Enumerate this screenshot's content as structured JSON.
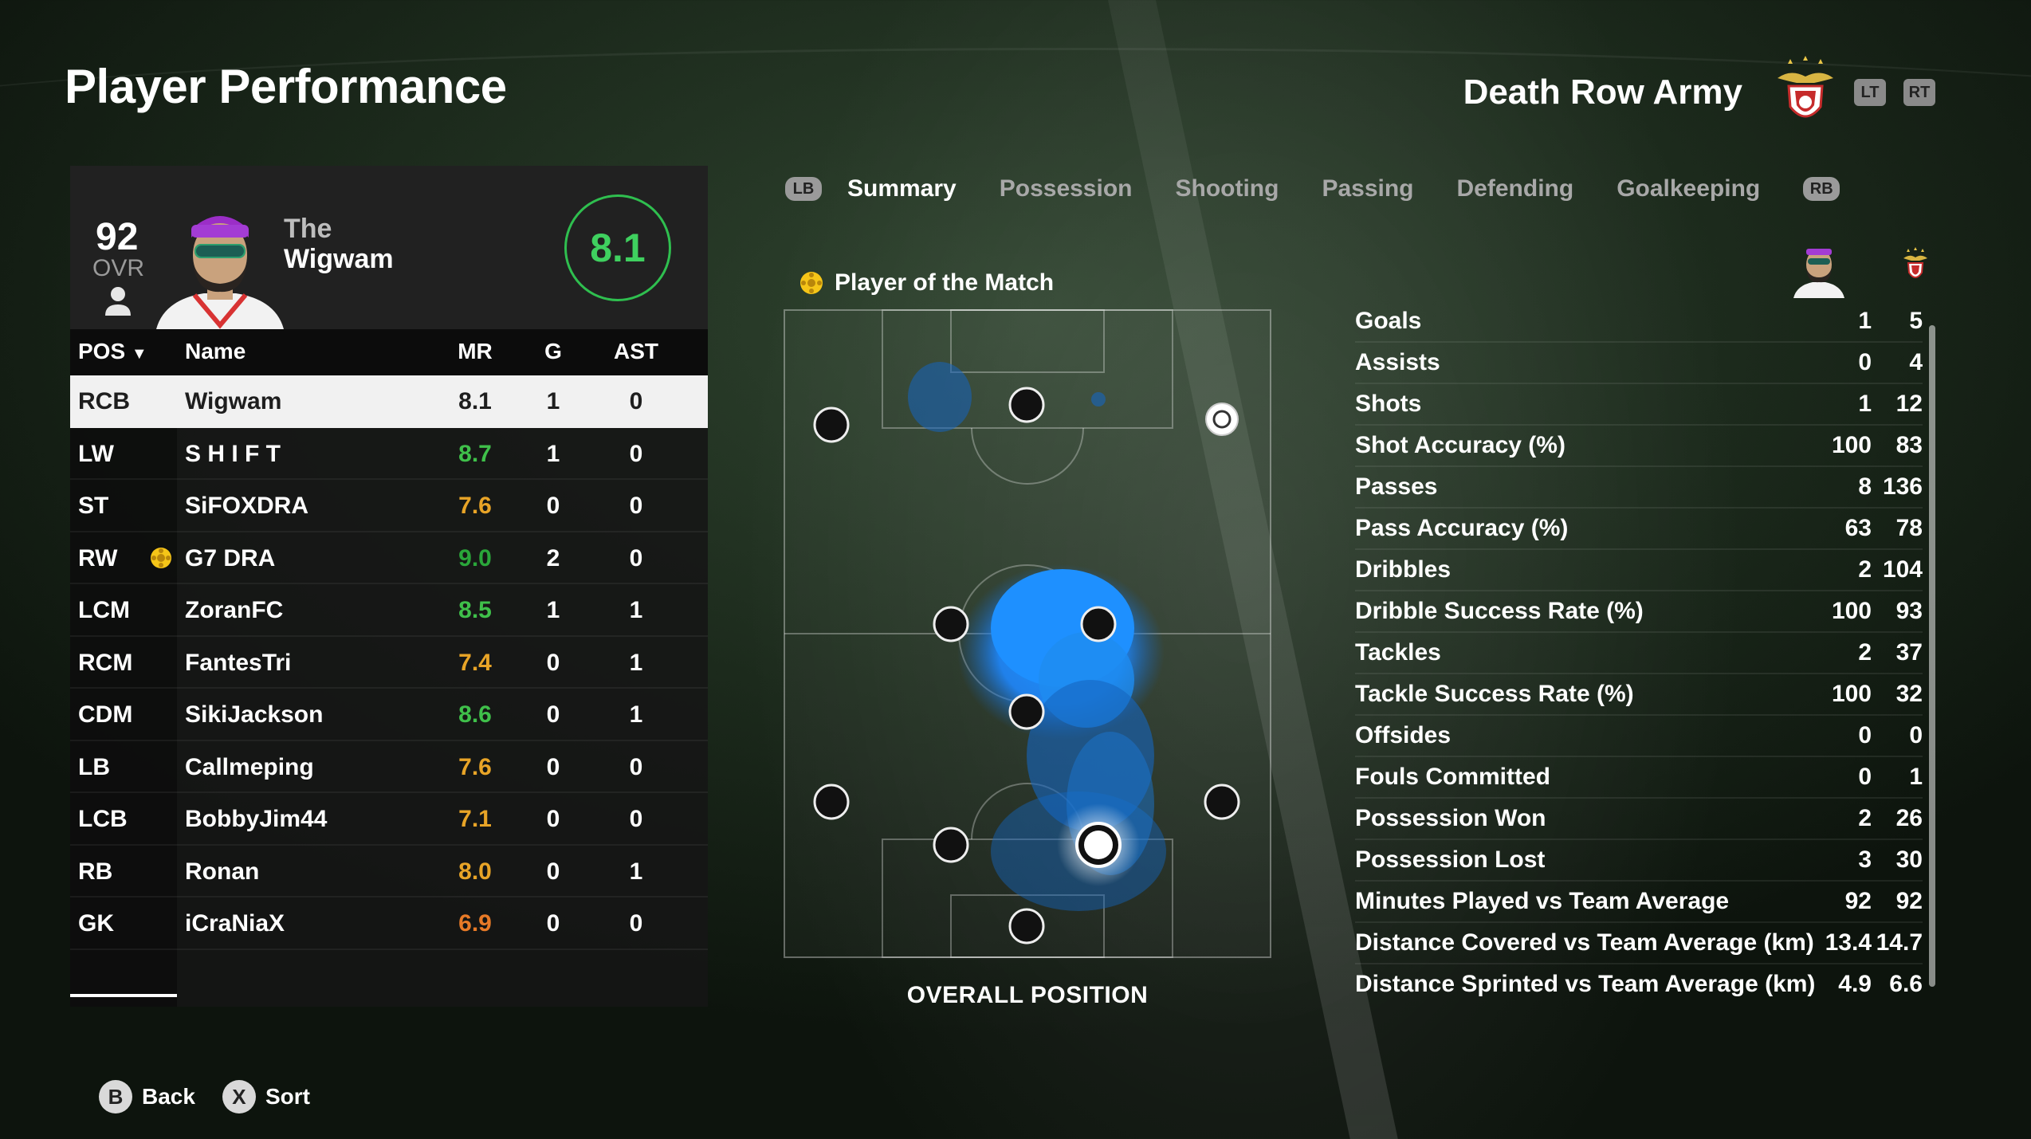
{
  "header": {
    "title": "Player Performance",
    "team_name": "Death Row Army",
    "lt_label": "LT",
    "rt_label": "RT"
  },
  "player": {
    "ovr": "92",
    "ovr_label": "OVR",
    "first_name": "The",
    "last_name": "Wigwam",
    "rating": "8.1"
  },
  "table": {
    "columns": {
      "pos": "POS",
      "name": "Name",
      "mr": "MR",
      "g": "G",
      "ast": "AST"
    },
    "rows": [
      {
        "pos": "RCB",
        "name": "Wigwam",
        "mr": "8.1",
        "g": "1",
        "ast": "0",
        "mr_color": "#1e1e1e"
      },
      {
        "pos": "LW",
        "name": "S H I F T",
        "mr": "8.7",
        "g": "1",
        "ast": "0",
        "mr_color": "#3fc04a"
      },
      {
        "pos": "ST",
        "name": "SiFOXDRA",
        "mr": "7.6",
        "g": "0",
        "ast": "0",
        "mr_color": "#e8a427"
      },
      {
        "pos": "RW",
        "name": "G7 DRA",
        "mr": "9.0",
        "g": "2",
        "ast": "0",
        "mr_color": "#2aa63a"
      },
      {
        "pos": "LCM",
        "name": "ZoranFC",
        "mr": "8.5",
        "g": "1",
        "ast": "1",
        "mr_color": "#3fc04a"
      },
      {
        "pos": "RCM",
        "name": "FantesTri",
        "mr": "7.4",
        "g": "0",
        "ast": "1",
        "mr_color": "#e8a427"
      },
      {
        "pos": "CDM",
        "name": "SikiJackson",
        "mr": "8.6",
        "g": "0",
        "ast": "1",
        "mr_color": "#3fc04a"
      },
      {
        "pos": "LB",
        "name": "Callmeping",
        "mr": "7.6",
        "g": "0",
        "ast": "0",
        "mr_color": "#e8a427"
      },
      {
        "pos": "LCB",
        "name": "BobbyJim44",
        "mr": "7.1",
        "g": "0",
        "ast": "0",
        "mr_color": "#e8a427"
      },
      {
        "pos": "RB",
        "name": "Ronan",
        "mr": "8.0",
        "g": "0",
        "ast": "1",
        "mr_color": "#e8a427"
      },
      {
        "pos": "GK",
        "name": "iCraNiaX",
        "mr": "6.9",
        "g": "0",
        "ast": "0",
        "mr_color": "#e87a27"
      }
    ]
  },
  "tabs": {
    "lb": "LB",
    "rb": "RB",
    "items": [
      "Summary",
      "Possession",
      "Shooting",
      "Passing",
      "Defending",
      "Goalkeeping"
    ],
    "active": "Summary"
  },
  "potm_label": "Player of the Match",
  "pitch_caption": "OVERALL POSITION",
  "stats": [
    {
      "label": "Goals",
      "player": "1",
      "team": "5"
    },
    {
      "label": "Assists",
      "player": "0",
      "team": "4"
    },
    {
      "label": "Shots",
      "player": "1",
      "team": "12"
    },
    {
      "label": "Shot Accuracy (%)",
      "player": "100",
      "team": "83"
    },
    {
      "label": "Passes",
      "player": "8",
      "team": "136"
    },
    {
      "label": "Pass Accuracy (%)",
      "player": "63",
      "team": "78"
    },
    {
      "label": "Dribbles",
      "player": "2",
      "team": "104"
    },
    {
      "label": "Dribble Success Rate (%)",
      "player": "100",
      "team": "93"
    },
    {
      "label": "Tackles",
      "player": "2",
      "team": "37"
    },
    {
      "label": "Tackle Success Rate (%)",
      "player": "100",
      "team": "32"
    },
    {
      "label": "Offsides",
      "player": "0",
      "team": "0"
    },
    {
      "label": "Fouls Committed",
      "player": "0",
      "team": "1"
    },
    {
      "label": "Possession Won",
      "player": "2",
      "team": "26"
    },
    {
      "label": "Possession Lost",
      "player": "3",
      "team": "30"
    },
    {
      "label": "Minutes Played vs Team Average",
      "player": "92",
      "team": "92"
    },
    {
      "label": "Distance Covered vs Team Average (km)",
      "player": "13.4",
      "team": "14.7"
    },
    {
      "label": "Distance Sprinted vs Team Average (km)",
      "player": "4.9",
      "team": "6.6"
    }
  ],
  "footer": {
    "back_btn": "B",
    "back_label": "Back",
    "sort_btn": "X",
    "sort_label": "Sort"
  },
  "colors": {
    "accent_green": "#2fbf4f",
    "heat_blue": "#1e90ff",
    "potm_yellow": "#f5c518"
  }
}
